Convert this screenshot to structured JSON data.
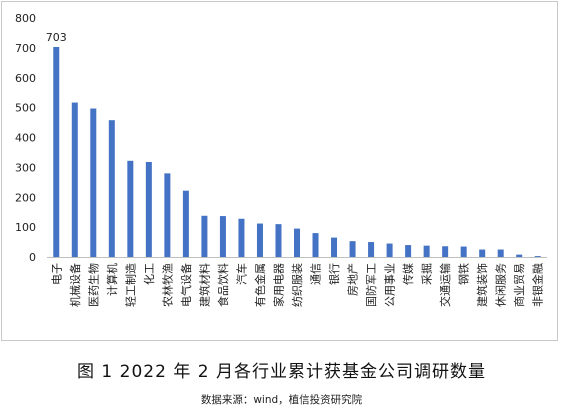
{
  "chart_data": {
    "type": "bar",
    "color": "#4472C4",
    "ylim": [
      0,
      800
    ],
    "yticks": [
      0,
      100,
      200,
      300,
      400,
      500,
      600,
      700,
      800
    ],
    "grid": false,
    "legend": "none",
    "categories": [
      "电子",
      "机械设备",
      "医药生物",
      "计算机",
      "轻工制造",
      "化工",
      "农林牧渔",
      "电气设备",
      "建筑材料",
      "食品饮料",
      "汽车",
      "有色金属",
      "家用电器",
      "纺织服装",
      "通信",
      "银行",
      "房地产",
      "国防军工",
      "公用事业",
      "传媒",
      "采掘",
      "交通运输",
      "钢铁",
      "建筑装饰",
      "休闲服务",
      "商业贸易",
      "非银金融"
    ],
    "values": [
      703,
      517,
      497,
      458,
      322,
      318,
      280,
      222,
      138,
      137,
      128,
      112,
      110,
      95,
      80,
      65,
      53,
      50,
      45,
      40,
      38,
      36,
      35,
      25,
      25,
      8,
      3
    ],
    "data_labels": [
      {
        "index": 0,
        "text": "703"
      }
    ]
  },
  "caption": "图 1 2022 年 2 月各行业累计获基金公司调研数量",
  "source": "数据来源：wind，植信投资研究院"
}
